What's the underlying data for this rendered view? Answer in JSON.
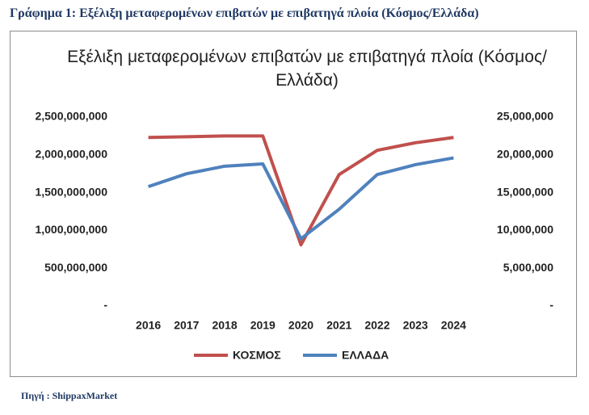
{
  "caption": "Γράφημα 1: Εξέλιξη μεταφερομένων επιβατών με επιβατηγά πλοία (Κόσμος/Ελλάδα)",
  "source": "Πηγή : ShippaxMarket",
  "chart_data": {
    "type": "line",
    "title": "Εξέλιξη μεταφερομένων επιβατών με επιβατηγά πλοία (Κόσμος/Ελλάδα)",
    "categories": [
      "2016",
      "2017",
      "2018",
      "2019",
      "2020",
      "2021",
      "2022",
      "2023",
      "2024"
    ],
    "series": [
      {
        "name": "ΚΟΣΜΟΣ",
        "color": "#c0504d",
        "values": [
          2230000000,
          2240000000,
          2250000000,
          2250000000,
          810000000,
          1740000000,
          2060000000,
          2160000000,
          2230000000
        ]
      },
      {
        "name": "ΕΛΛΑΔΑ",
        "color": "#4f81bd",
        "axis": "y2",
        "values": [
          15800000,
          17500000,
          18500000,
          18800000,
          8900000,
          12800000,
          17400000,
          18700000,
          19600000
        ]
      }
    ],
    "ylim": [
      0,
      2500000000
    ],
    "yticks": [
      {
        "value": 0,
        "label": "-"
      },
      {
        "value": 500000000,
        "label": "500,000,000"
      },
      {
        "value": 1000000000,
        "label": "1,000,000,000"
      },
      {
        "value": 1500000000,
        "label": "1,500,000,000"
      },
      {
        "value": 2000000000,
        "label": "2,000,000,000"
      },
      {
        "value": 2500000000,
        "label": "2,500,000,000"
      }
    ],
    "y2lim": [
      0,
      25000000
    ],
    "y2ticks": [
      {
        "value": 0,
        "label": "-"
      },
      {
        "value": 5000000,
        "label": "5,000,000"
      },
      {
        "value": 10000000,
        "label": "10,000,000"
      },
      {
        "value": 15000000,
        "label": "15,000,000"
      },
      {
        "value": 20000000,
        "label": "20,000,000"
      },
      {
        "value": 25000000,
        "label": "25,000,000"
      }
    ],
    "legend": "bottom"
  }
}
